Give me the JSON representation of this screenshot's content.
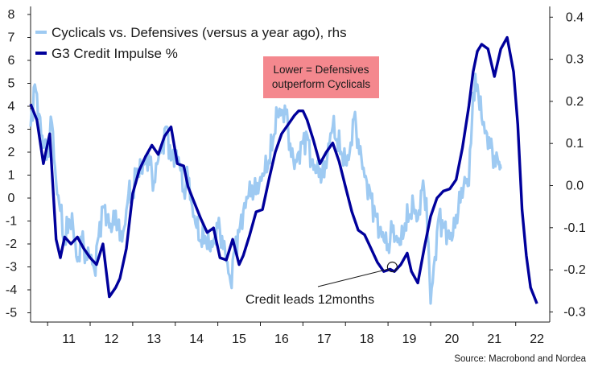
{
  "chart_data": {
    "type": "line",
    "title": "",
    "legend": [
      {
        "name": "Cyclicals vs. Defensives (versus a year ago), rhs",
        "color": "#9ecaf2"
      },
      {
        "name": "G3 Credit Impulse %",
        "color": "#00009b"
      }
    ],
    "annotation_box": {
      "lines": [
        "Lower = Defensives",
        "outperform Cyclicals"
      ],
      "color": "#f4888e"
    },
    "annotation_arrow": {
      "label": "Credit leads 12months",
      "x": 2019.1,
      "y": -3.0
    },
    "source": "Source: Macrobond and Nordea",
    "x_ticks": [
      "11",
      "12",
      "13",
      "14",
      "15",
      "16",
      "17",
      "18",
      "19",
      "20",
      "21",
      "22"
    ],
    "xlim": [
      2010.6,
      2022.8
    ],
    "left_axis": {
      "ticks": [
        "-5",
        "-4",
        "-3",
        "-2",
        "-1",
        "0",
        "1",
        "2",
        "3",
        "4",
        "5",
        "6",
        "7",
        "8"
      ],
      "ylim": [
        -5.3,
        8.3
      ]
    },
    "right_axis": {
      "ticks": [
        "-0.3",
        "-0.2",
        "-0.1",
        "0.0",
        "0.1",
        "0.2",
        "0.3",
        "0.4"
      ],
      "ylim": [
        -0.3,
        0.4
      ]
    },
    "series": [
      {
        "name": "G3 Credit Impulse %",
        "axis": "left",
        "x": [
          2010.6,
          2010.75,
          2010.9,
          2011.05,
          2011.2,
          2011.3,
          2011.4,
          2011.55,
          2011.7,
          2011.85,
          2012.0,
          2012.15,
          2012.3,
          2012.45,
          2012.6,
          2012.7,
          2012.85,
          2013.0,
          2013.15,
          2013.3,
          2013.45,
          2013.6,
          2013.75,
          2013.9,
          2014.05,
          2014.2,
          2014.3,
          2014.45,
          2014.6,
          2014.75,
          2014.9,
          2015.05,
          2015.2,
          2015.35,
          2015.5,
          2015.6,
          2015.75,
          2015.9,
          2016.05,
          2016.2,
          2016.35,
          2016.5,
          2016.65,
          2016.8,
          2016.9,
          2017.0,
          2017.1,
          2017.25,
          2017.4,
          2017.55,
          2017.7,
          2017.85,
          2018.0,
          2018.15,
          2018.3,
          2018.45,
          2018.6,
          2018.75,
          2018.9,
          2019.05,
          2019.15,
          2019.3,
          2019.45,
          2019.55,
          2019.7,
          2019.85,
          2020.0,
          2020.15,
          2020.3,
          2020.45,
          2020.6,
          2020.75,
          2020.9,
          2021.0,
          2021.1,
          2021.2,
          2021.35,
          2021.5,
          2021.65,
          2021.8,
          2021.95,
          2022.05,
          2022.15,
          2022.25,
          2022.35,
          2022.5
        ],
        "values": [
          4.1,
          3.4,
          1.5,
          2.8,
          -1.8,
          -2.6,
          -1.7,
          -2.0,
          -1.7,
          -2.2,
          -2.6,
          -2.9,
          -2.0,
          -4.3,
          -3.9,
          -3.5,
          -2.2,
          0.2,
          1.2,
          1.8,
          2.3,
          1.9,
          2.7,
          3.1,
          1.5,
          1.4,
          0.5,
          -0.2,
          -0.9,
          -1.5,
          -1.3,
          -2.6,
          -2.7,
          -1.8,
          -2.9,
          -2.5,
          -1.6,
          -0.6,
          -0.5,
          0.8,
          2.0,
          2.8,
          3.2,
          3.6,
          3.8,
          3.8,
          3.4,
          2.5,
          1.5,
          2.0,
          2.4,
          1.6,
          0.5,
          -0.6,
          -1.4,
          -1.6,
          -2.2,
          -2.8,
          -3.2,
          -3.1,
          -3.2,
          -2.9,
          -2.4,
          -3.2,
          -3.7,
          -2.2,
          -0.8,
          0.0,
          0.3,
          0.4,
          0.8,
          2.2,
          4.0,
          5.5,
          6.4,
          6.7,
          6.5,
          5.3,
          6.5,
          7.0,
          5.5,
          3.2,
          -0.5,
          -2.5,
          -3.9,
          -4.6
        ]
      },
      {
        "name": "Cyclicals vs. Defensives (versus a year ago), rhs",
        "axis": "right",
        "x": [
          2010.6,
          2010.7,
          2010.8,
          2010.9,
          2011.0,
          2011.1,
          2011.2,
          2011.3,
          2011.4,
          2011.5,
          2011.6,
          2011.7,
          2011.8,
          2011.9,
          2012.0,
          2012.1,
          2012.2,
          2012.3,
          2012.4,
          2012.5,
          2012.6,
          2012.7,
          2012.8,
          2012.9,
          2013.0,
          2013.1,
          2013.2,
          2013.3,
          2013.4,
          2013.5,
          2013.6,
          2013.7,
          2013.8,
          2013.9,
          2014.0,
          2014.1,
          2014.2,
          2014.3,
          2014.4,
          2014.5,
          2014.6,
          2014.7,
          2014.8,
          2014.9,
          2015.0,
          2015.1,
          2015.2,
          2015.3,
          2015.4,
          2015.5,
          2015.6,
          2015.7,
          2015.8,
          2015.9,
          2016.0,
          2016.1,
          2016.2,
          2016.3,
          2016.4,
          2016.5,
          2016.6,
          2016.7,
          2016.8,
          2016.9,
          2017.0,
          2017.1,
          2017.2,
          2017.3,
          2017.4,
          2017.5,
          2017.6,
          2017.7,
          2017.8,
          2017.9,
          2018.0,
          2018.1,
          2018.2,
          2018.3,
          2018.4,
          2018.5,
          2018.6,
          2018.7,
          2018.8,
          2018.9,
          2019.0,
          2019.1,
          2019.2,
          2019.3,
          2019.4,
          2019.5,
          2019.6,
          2019.7,
          2019.8,
          2019.9,
          2020.0,
          2020.1,
          2020.2,
          2020.3,
          2020.4,
          2020.5,
          2020.6,
          2020.7,
          2020.8,
          2020.9,
          2021.0,
          2021.1,
          2021.2,
          2021.3,
          2021.4,
          2021.5,
          2021.6,
          2021.65
        ],
        "values": [
          0.14,
          0.24,
          0.17,
          0.09,
          0.08,
          0.15,
          0.01,
          -0.06,
          -0.14,
          -0.08,
          -0.1,
          -0.18,
          -0.13,
          -0.16,
          -0.17,
          -0.2,
          -0.12,
          -0.05,
          -0.07,
          -0.11,
          -0.06,
          -0.13,
          -0.1,
          -0.02,
          -0.03,
          0.04,
          0.03,
          0.07,
          0.05,
          0.01,
          0.06,
          0.1,
          0.14,
          0.06,
          0.08,
          0.05,
          -0.01,
          0.02,
          -0.05,
          -0.1,
          -0.13,
          -0.12,
          -0.15,
          -0.13,
          -0.1,
          -0.12,
          -0.18,
          -0.23,
          -0.15,
          -0.11,
          -0.06,
          -0.03,
          0.0,
          -0.02,
          0.02,
          0.03,
          0.06,
          0.11,
          0.17,
          0.18,
          0.17,
          0.1,
          0.04,
          0.08,
          0.1,
          0.12,
          0.06,
          0.03,
          0.04,
          0.02,
          0.1,
          0.14,
          0.11,
          0.08,
          0.05,
          0.08,
          0.16,
          0.11,
          0.04,
          0.01,
          -0.03,
          -0.07,
          -0.1,
          -0.13,
          -0.14,
          -0.11,
          -0.12,
          -0.14,
          -0.09,
          -0.07,
          -0.05,
          -0.08,
          -0.01,
          -0.03,
          -0.28,
          -0.17,
          -0.07,
          -0.1,
          -0.11,
          -0.13,
          -0.07,
          -0.04,
          0.02,
          0.0,
          0.22,
          0.24,
          0.16,
          0.13,
          0.09,
          0.07,
          0.05,
          0.04
        ]
      }
    ]
  }
}
